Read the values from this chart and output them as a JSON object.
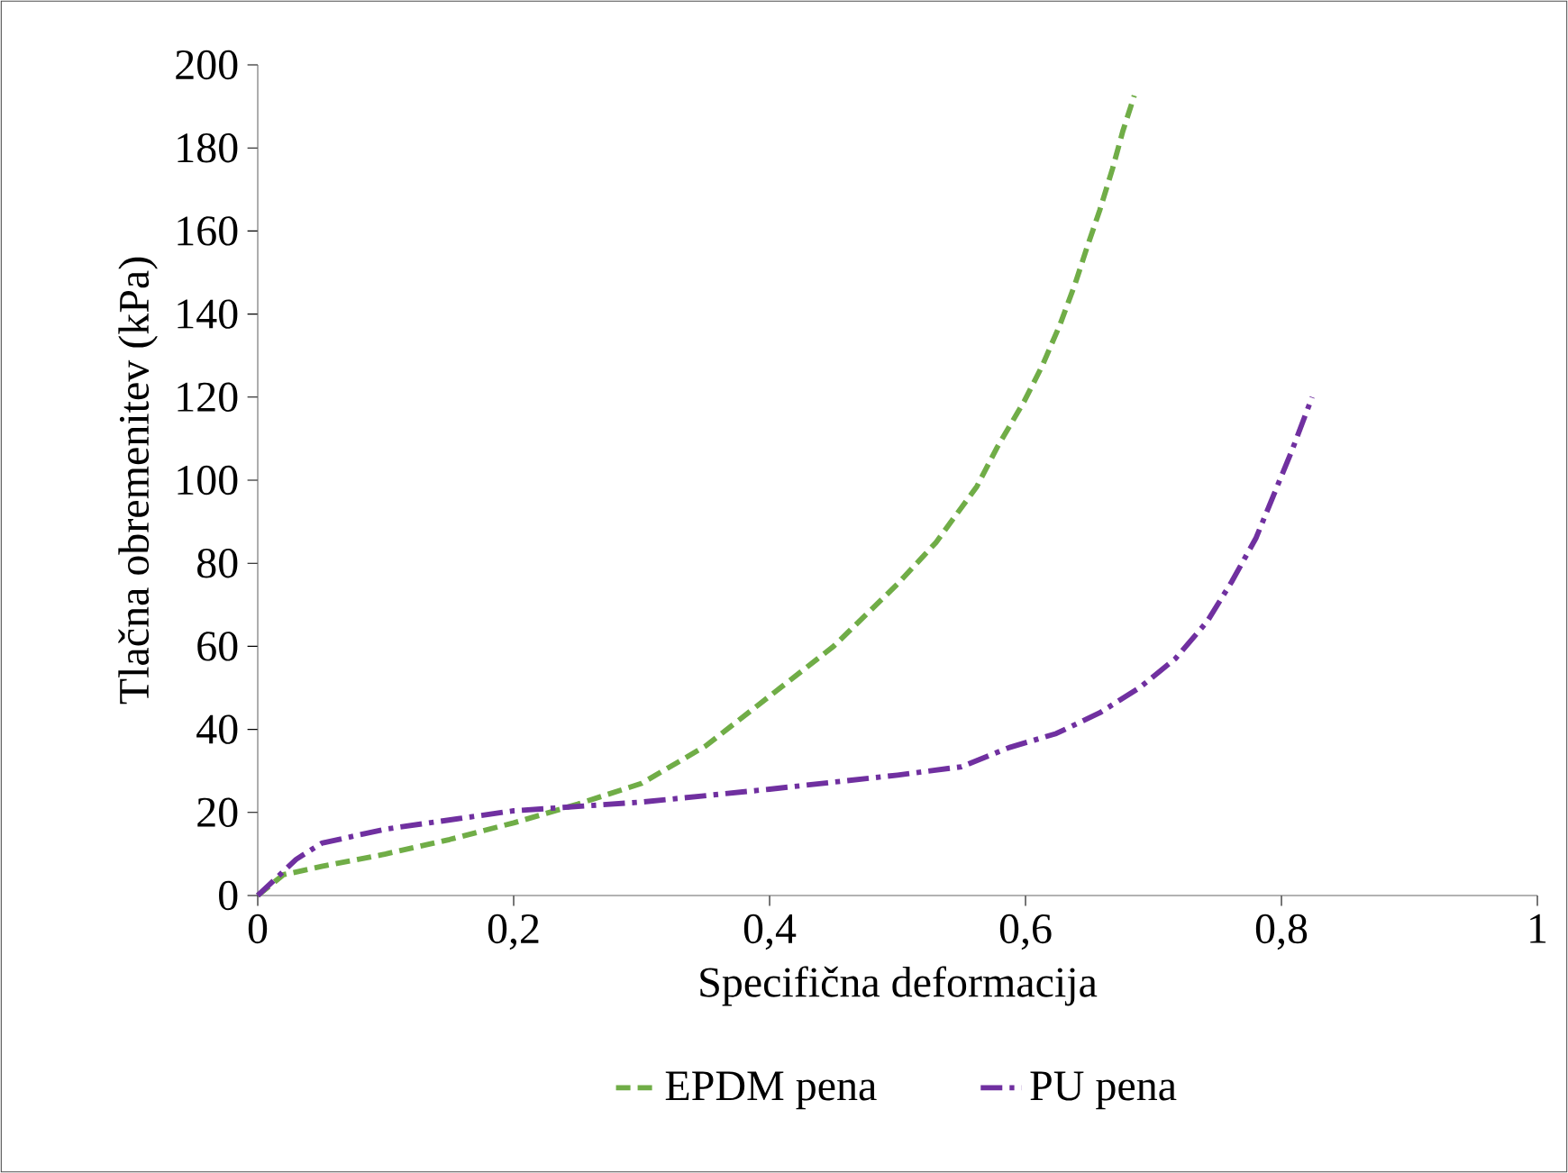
{
  "chart_data": {
    "type": "line",
    "xlabel": "Specifična deformacija",
    "ylabel": "Tlačna obremenitev (kPa)",
    "xlim": [
      0,
      1
    ],
    "ylim": [
      0,
      200
    ],
    "xticks": [
      0,
      {
        "value": 0.2,
        "label": "0,2"
      },
      {
        "value": 0.4,
        "label": "0,4"
      },
      {
        "value": 0.6,
        "label": "0,6"
      },
      {
        "value": 0.8,
        "label": "0,8"
      },
      1
    ],
    "yticks": [
      0,
      20,
      40,
      60,
      80,
      100,
      120,
      140,
      160,
      180,
      200
    ],
    "grid": false,
    "legend": "bottom",
    "marker": "none",
    "series": [
      {
        "name": "EPDM pena",
        "color": "#70ad47",
        "line_style": "dashed",
        "x": [
          0,
          0.02,
          0.05,
          0.1,
          0.15,
          0.2,
          0.25,
          0.3,
          0.35,
          0.4,
          0.45,
          0.5,
          0.53,
          0.562,
          0.578,
          0.599,
          0.613,
          0.627,
          0.639,
          0.648,
          0.658,
          0.668,
          0.676,
          0.685
        ],
        "values": [
          0,
          5,
          7,
          10,
          13.5,
          17.5,
          22,
          27,
          36,
          48,
          60,
          75,
          85,
          98.5,
          108,
          119,
          127.5,
          137.5,
          147.5,
          156,
          165,
          175,
          184,
          192.6
        ]
      },
      {
        "name": "PU pena",
        "color": "#7030a0",
        "line_style": "dashdot",
        "x": [
          0,
          0.03,
          0.05,
          0.1,
          0.2,
          0.3,
          0.4,
          0.5,
          0.55,
          0.587,
          0.624,
          0.658,
          0.689,
          0.717,
          0.742,
          0.761,
          0.78,
          0.808,
          0.824
        ],
        "values": [
          0,
          8.7,
          12.6,
          16,
          20.4,
          22.5,
          25.6,
          29,
          31,
          35.6,
          39,
          44,
          50,
          57,
          66,
          75.5,
          86,
          107,
          120
        ]
      }
    ]
  }
}
